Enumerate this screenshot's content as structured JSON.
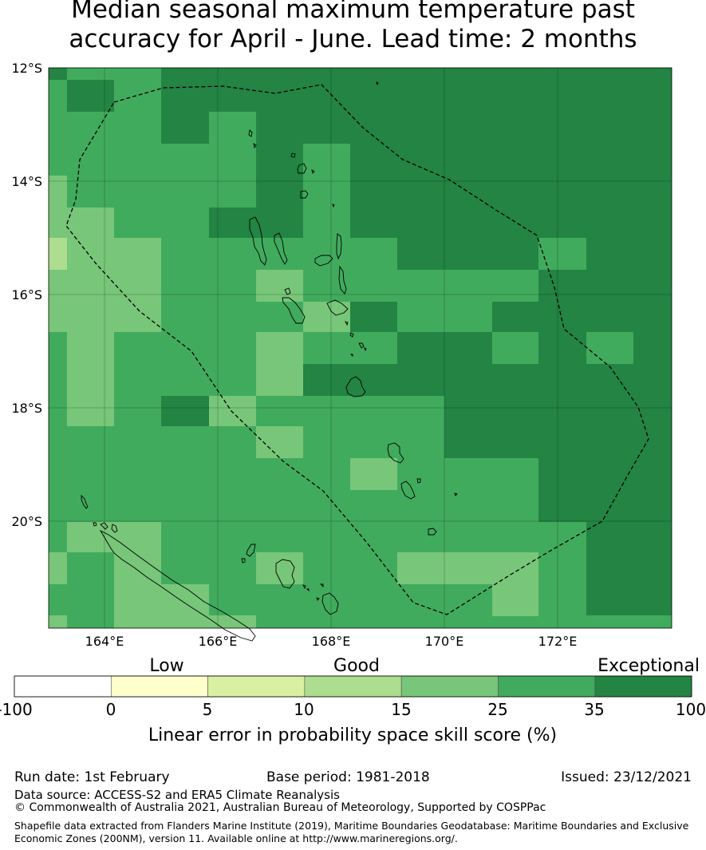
{
  "title": {
    "line1": "Median seasonal maximum temperature past",
    "line2": "accuracy for April - June. Lead time: 2 months"
  },
  "map": {
    "lat_labels": [
      "12°S",
      "14°S",
      "16°S",
      "18°S",
      "20°S"
    ],
    "lon_labels": [
      "164°E",
      "166°E",
      "168°E",
      "170°E",
      "172°E"
    ]
  },
  "legend": {
    "category_labels": [
      "Low",
      "Good",
      "Exceptional"
    ],
    "ticks": [
      "-100",
      "0",
      "5",
      "10",
      "15",
      "25",
      "35",
      "100"
    ],
    "colors": [
      "#ffffff",
      "#ffffcc",
      "#d9f0a3",
      "#addd8e",
      "#78c679",
      "#41ab5d",
      "#238443"
    ],
    "axis_label": "Linear error in probability space skill score (%)"
  },
  "footer": {
    "run_date": "Run date: 1st February",
    "base_period": "Base period: 1981-2018",
    "issued": "Issued: 23/12/2021",
    "data_source": "Data source: ACCESS-S2 and ERA5 Climate Reanalysis",
    "copyright": "© Commonwealth of Australia 2021, Australian Bureau of Meteorology, Supported by COSPPac",
    "shapefile_line1": "Shapefile data extracted from Flanders Marine Institute (2019), Maritime Boundaries Geodatabase: Maritime Boundaries and Exclusive",
    "shapefile_line2": "Economic Zones (200NM), version 11. Available online at http://www.marineregions.org/."
  }
}
